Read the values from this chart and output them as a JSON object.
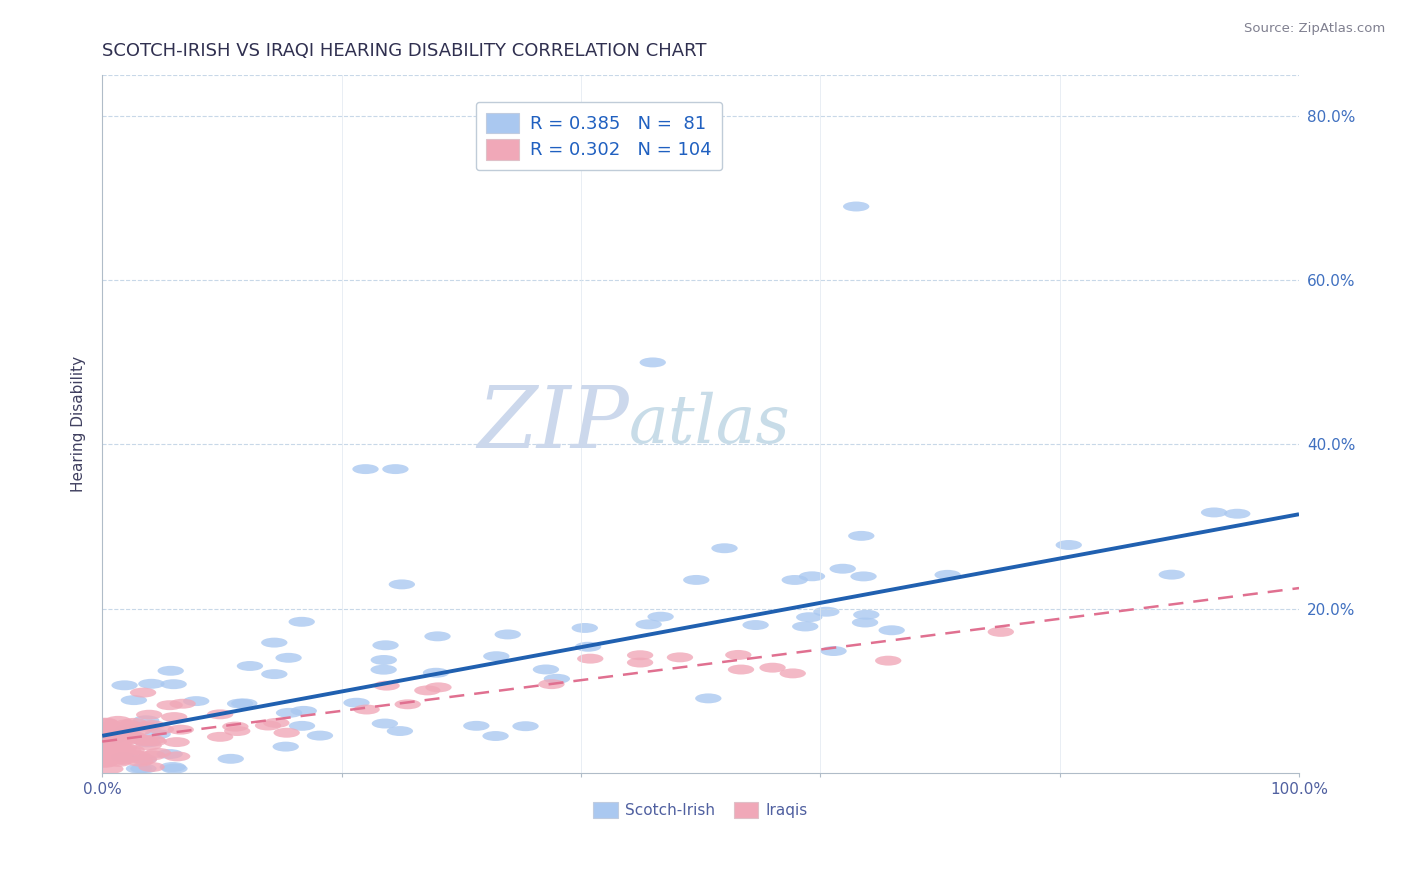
{
  "title": "SCOTCH-IRISH VS IRAQI HEARING DISABILITY CORRELATION CHART",
  "source": "Source: ZipAtlas.com",
  "ylabel": "Hearing Disability",
  "xlim": [
    0.0,
    1.0
  ],
  "ylim": [
    0.0,
    0.85
  ],
  "blue_R": 0.385,
  "blue_N": 81,
  "pink_R": 0.302,
  "pink_N": 104,
  "blue_color": "#aac8f0",
  "pink_color": "#f0a8b8",
  "blue_line_color": "#2060b0",
  "pink_line_color": "#e07090",
  "title_color": "#303050",
  "legend_text_color": "#2060c0",
  "grid_color": "#c8d8e8",
  "watermark_color": "#d8e4f0",
  "background_color": "#ffffff",
  "blue_trend_x0": 0.0,
  "blue_trend_y0": 0.045,
  "blue_trend_x1": 1.0,
  "blue_trend_y1": 0.315,
  "pink_trend_x0": 0.0,
  "pink_trend_y0": 0.038,
  "pink_trend_x1": 1.0,
  "pink_trend_y1": 0.225
}
